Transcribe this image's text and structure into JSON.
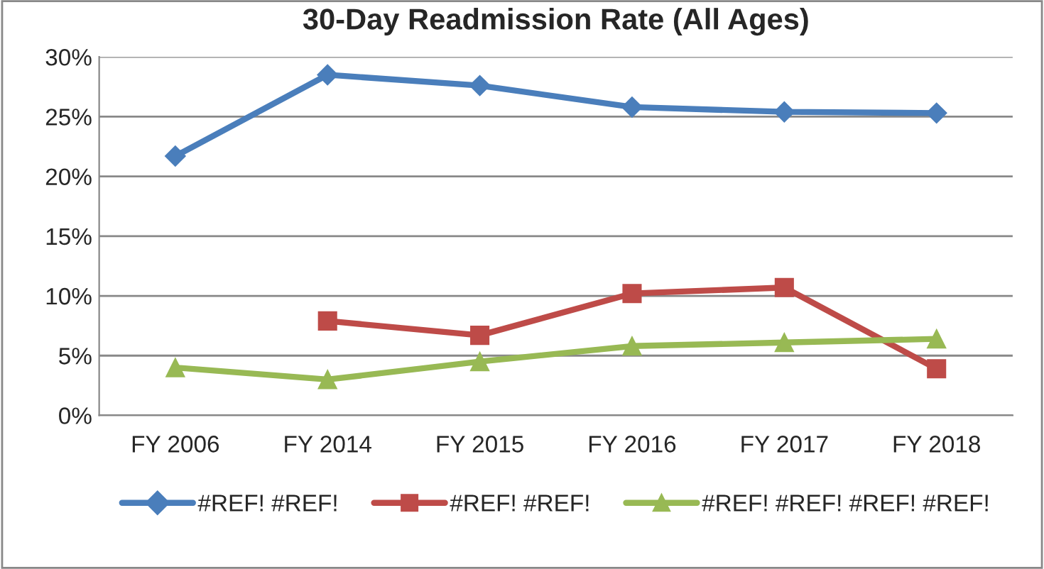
{
  "chart_data": {
    "type": "line",
    "title": "30-Day Readmission Rate (All Ages)",
    "categories": [
      "FY 2006",
      "FY 2014",
      "FY 2015",
      "FY 2016",
      "FY 2017",
      "FY 2018"
    ],
    "series": [
      {
        "name": "#REF! #REF!",
        "color": "#4a7ebb",
        "marker": "diamond",
        "values": [
          21.7,
          28.5,
          27.6,
          25.8,
          25.4,
          25.3
        ]
      },
      {
        "name": "#REF! #REF!",
        "color": "#be4b48",
        "marker": "square",
        "values": [
          null,
          7.9,
          6.7,
          10.2,
          10.7,
          3.9
        ]
      },
      {
        "name": "#REF! #REF! #REF! #REF!",
        "color": "#98b954",
        "marker": "triangle",
        "values": [
          4.0,
          3.0,
          4.5,
          5.8,
          6.1,
          6.4
        ]
      }
    ],
    "ylim": [
      0,
      30
    ],
    "yticks": [
      {
        "value": 0,
        "label": "0%"
      },
      {
        "value": 5,
        "label": "5%"
      },
      {
        "value": 10,
        "label": "10%"
      },
      {
        "value": 15,
        "label": "15%"
      },
      {
        "value": 20,
        "label": "20%"
      },
      {
        "value": 25,
        "label": "25%"
      },
      {
        "value": 30,
        "label": "30%"
      }
    ],
    "grid": "y",
    "legend": "bottom",
    "line_style": "solid"
  }
}
